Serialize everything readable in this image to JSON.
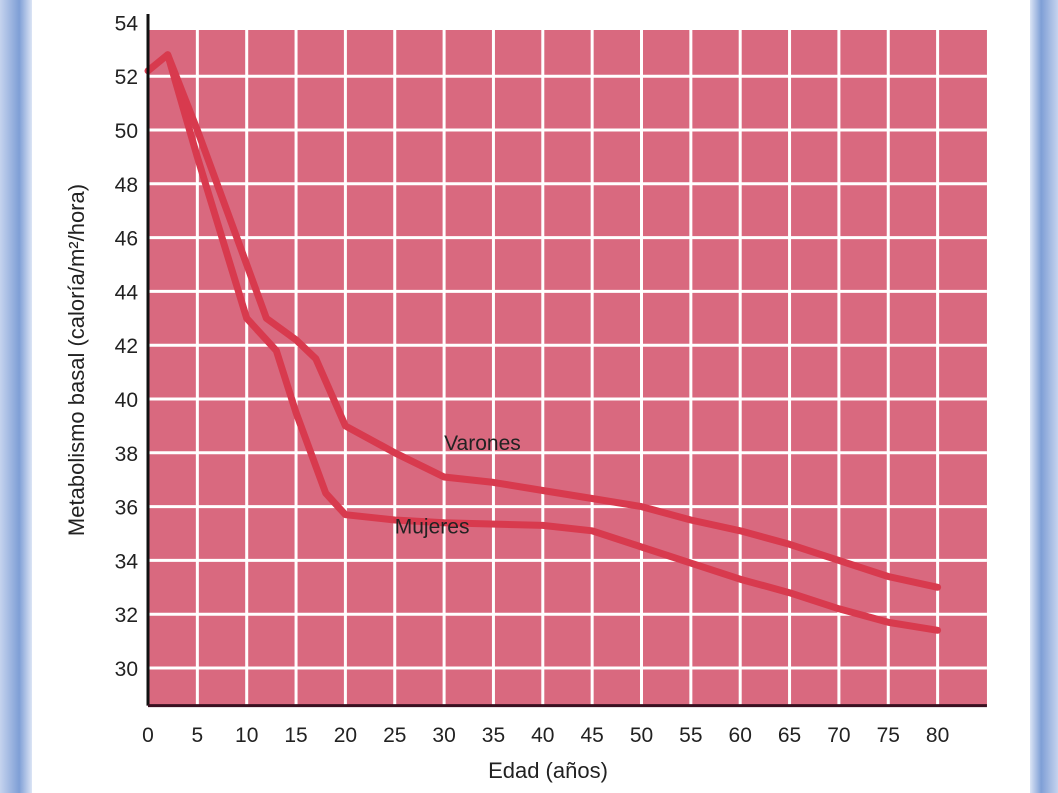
{
  "chart_data": {
    "type": "line",
    "title": "",
    "xlabel": "Edad (años)",
    "ylabel": "Metabolismo basal (caloría/m²/hora)",
    "xlim": [
      0,
      85
    ],
    "ylim": [
      28.6,
      54
    ],
    "xticks": [
      0,
      5,
      10,
      15,
      20,
      25,
      30,
      35,
      40,
      45,
      50,
      55,
      60,
      65,
      70,
      75,
      80
    ],
    "yticks": [
      30,
      32,
      34,
      36,
      38,
      40,
      42,
      44,
      46,
      48,
      50,
      52,
      54
    ],
    "grid": true,
    "background_color": "#d9697f",
    "line_color": "#d83a4e",
    "series": [
      {
        "name": "Varones",
        "label_at": [
          30,
          38.1
        ],
        "points": [
          [
            0,
            52.2
          ],
          [
            2,
            52.8
          ],
          [
            5,
            50
          ],
          [
            10,
            45
          ],
          [
            12,
            43
          ],
          [
            15,
            42.2
          ],
          [
            17,
            41.5
          ],
          [
            20,
            39
          ],
          [
            25,
            38
          ],
          [
            30,
            37.1
          ],
          [
            35,
            36.9
          ],
          [
            40,
            36.6
          ],
          [
            45,
            36.3
          ],
          [
            50,
            36
          ],
          [
            55,
            35.5
          ],
          [
            60,
            35.1
          ],
          [
            65,
            34.6
          ],
          [
            70,
            34
          ],
          [
            75,
            33.4
          ],
          [
            80,
            33
          ]
        ]
      },
      {
        "name": "Mujeres",
        "label_at": [
          25,
          35
        ],
        "points": [
          [
            2,
            52.8
          ],
          [
            5,
            49
          ],
          [
            10,
            43
          ],
          [
            13,
            41.8
          ],
          [
            15,
            39.5
          ],
          [
            18,
            36.5
          ],
          [
            20,
            35.7
          ],
          [
            25,
            35.5
          ],
          [
            30,
            35.4
          ],
          [
            40,
            35.3
          ],
          [
            45,
            35.1
          ],
          [
            50,
            34.5
          ],
          [
            55,
            33.9
          ],
          [
            60,
            33.3
          ],
          [
            65,
            32.8
          ],
          [
            70,
            32.2
          ],
          [
            75,
            31.7
          ],
          [
            80,
            31.4
          ]
        ]
      }
    ]
  }
}
